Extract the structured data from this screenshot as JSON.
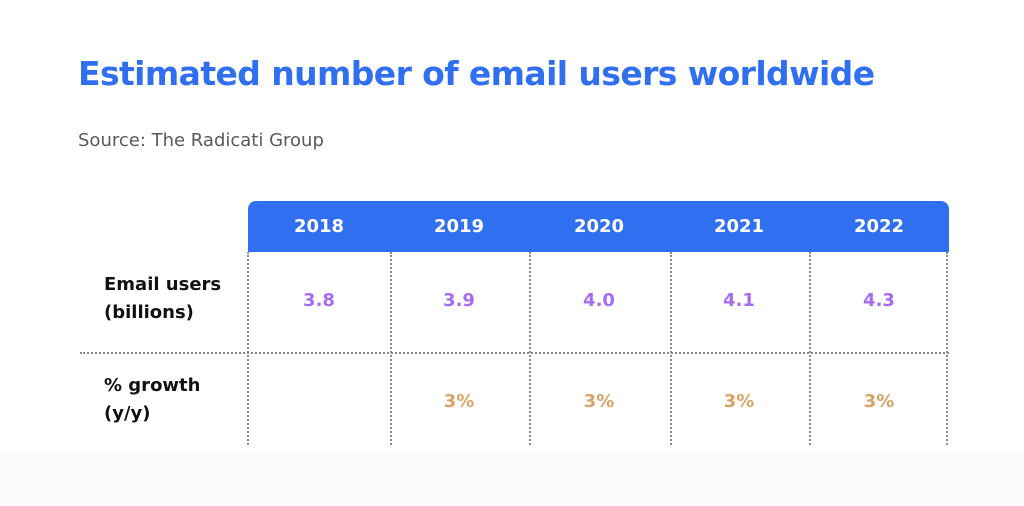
{
  "title": "Estimated number of email users worldwide",
  "source": "Source: The Radicati Group",
  "colors": {
    "accent": "#2f6ff0",
    "users_value": "#a66cf2",
    "growth_value": "#d6a468"
  },
  "chart_data": {
    "type": "table",
    "title": "Estimated number of email users worldwide",
    "columns": [
      "2018",
      "2019",
      "2020",
      "2021",
      "2022"
    ],
    "rows": [
      {
        "label_line1": "Email users",
        "label_line2": "(billions)",
        "values": [
          "3.8",
          "3.9",
          "4.0",
          "4.1",
          "4.3"
        ]
      },
      {
        "label_line1": "% growth",
        "label_line2": "(y/y)",
        "values": [
          "",
          "3%",
          "3%",
          "3%",
          "3%"
        ]
      }
    ]
  }
}
